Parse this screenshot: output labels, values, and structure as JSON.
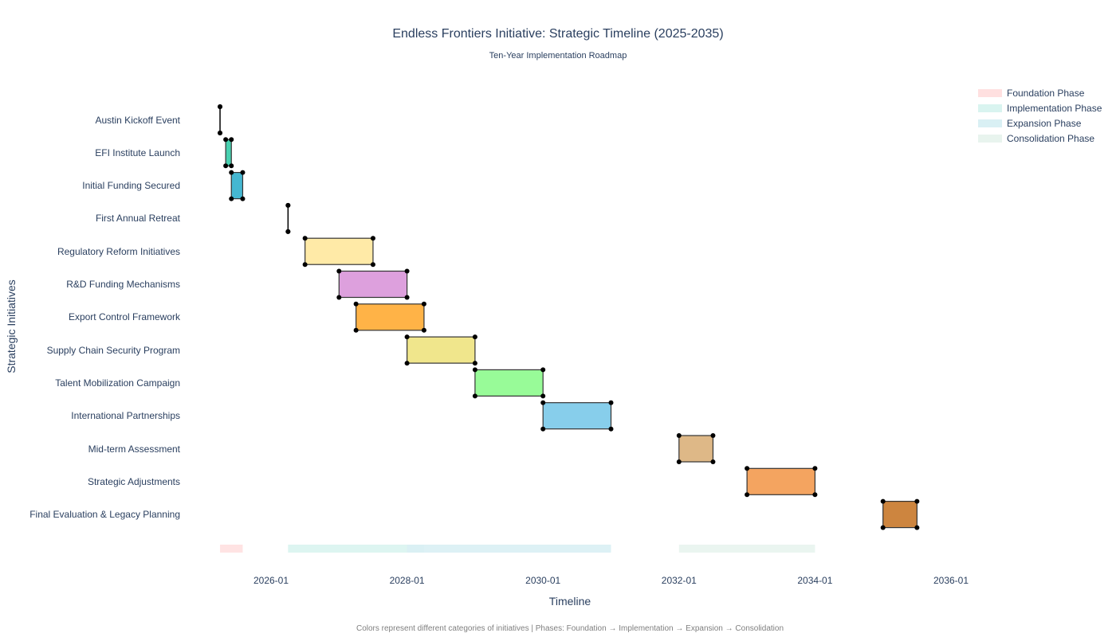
{
  "title": "Endless Frontiers Initiative: Strategic Timeline (2025-2035)",
  "subtitle": "Ten-Year Implementation Roadmap",
  "xaxis_label": "Timeline",
  "yaxis_label": "Strategic Initiatives",
  "footer": "Colors represent different categories of initiatives | Phases: Foundation → Implementation → Expansion → Consolidation",
  "legend": [
    {
      "label": "Foundation Phase",
      "color": "#ffe0e0"
    },
    {
      "label": "Implementation Phase",
      "color": "#d9f4f0"
    },
    {
      "label": "Expansion Phase",
      "color": "#d9f0f4"
    },
    {
      "label": "Consolidation Phase",
      "color": "#e8f4ee"
    }
  ],
  "xticks": [
    "2026-01",
    "2028-01",
    "2030-01",
    "2032-01",
    "2034-01",
    "2036-01"
  ],
  "chart_data": {
    "type": "gantt",
    "title": "Endless Frontiers Initiative: Strategic Timeline (2025-2035)",
    "subtitle": "Ten-Year Implementation Roadmap",
    "xlabel": "Timeline",
    "ylabel": "Strategic Initiatives",
    "x_tick_labels": [
      "2026-01",
      "2028-01",
      "2030-01",
      "2032-01",
      "2034-01",
      "2036-01"
    ],
    "xlim": [
      "2024-06",
      "2037-03"
    ],
    "tasks": [
      {
        "name": "Austin Kickoff Event",
        "start": "2025-04",
        "end": "2025-04",
        "color": "#40e0d0"
      },
      {
        "name": "EFI Institute Launch",
        "start": "2025-05",
        "end": "2025-06",
        "color": "#48d1b0"
      },
      {
        "name": "Initial Funding Secured",
        "start": "2025-06",
        "end": "2025-08",
        "color": "#45b7d1"
      },
      {
        "name": "First Annual Retreat",
        "start": "2026-04",
        "end": "2026-04",
        "color": "#96ceb4"
      },
      {
        "name": "Regulatory Reform Initiatives",
        "start": "2026-07",
        "end": "2027-07",
        "color": "#ffeaa7"
      },
      {
        "name": "R&D Funding Mechanisms",
        "start": "2027-01",
        "end": "2028-01",
        "color": "#dda0dd"
      },
      {
        "name": "Export Control Framework",
        "start": "2027-04",
        "end": "2028-04",
        "color": "#ffb347"
      },
      {
        "name": "Supply Chain Security Program",
        "start": "2028-01",
        "end": "2029-01",
        "color": "#f0e68c"
      },
      {
        "name": "Talent Mobilization Campaign",
        "start": "2029-01",
        "end": "2030-01",
        "color": "#98fb98"
      },
      {
        "name": "International Partnerships",
        "start": "2030-01",
        "end": "2031-01",
        "color": "#87ceeb"
      },
      {
        "name": "Mid-term Assessment",
        "start": "2032-01",
        "end": "2032-07",
        "color": "#deb887"
      },
      {
        "name": "Strategic Adjustments",
        "start": "2033-01",
        "end": "2034-01",
        "color": "#f4a460"
      },
      {
        "name": "Final Evaluation & Legacy Planning",
        "start": "2035-01",
        "end": "2035-07",
        "color": "#cd853f"
      }
    ],
    "phases": [
      {
        "name": "Foundation Phase",
        "start": "2025-04",
        "end": "2025-08",
        "color": "#ffe0e0"
      },
      {
        "name": "Implementation Phase",
        "start": "2026-04",
        "end": "2028-04",
        "color": "#d9f4f0"
      },
      {
        "name": "Expansion Phase",
        "start": "2028-01",
        "end": "2031-01",
        "color": "#d9f0f4"
      },
      {
        "name": "Consolidation Phase",
        "start": "2032-01",
        "end": "2034-01",
        "color": "#e8f4ee"
      }
    ],
    "legend_position": "top-right",
    "grid": false
  }
}
